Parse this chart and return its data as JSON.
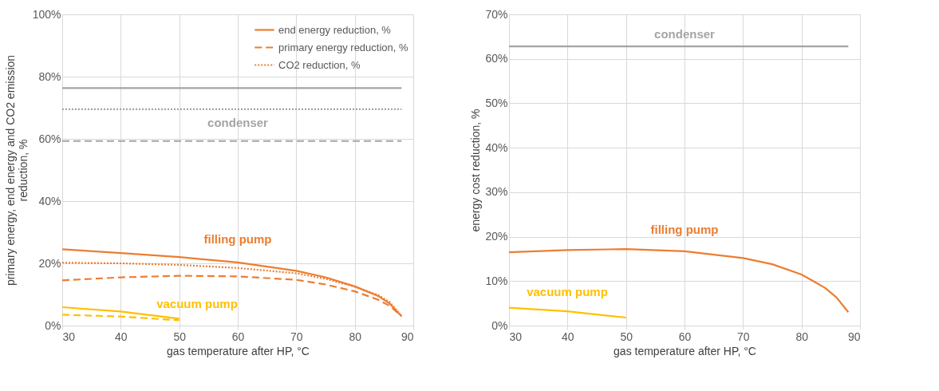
{
  "chart_data": [
    {
      "type": "line",
      "xlabel": "gas temperature after HP, °C",
      "ylabel": "primary energy, end energy and CO2 emission\nreduction, %",
      "xlim": [
        30,
        90
      ],
      "xticks": [
        30,
        40,
        50,
        60,
        70,
        80,
        90
      ],
      "ylim": [
        0,
        100
      ],
      "yticks": [
        {
          "value": 0,
          "label": "0%"
        },
        {
          "value": 20,
          "label": "20%"
        },
        {
          "value": 40,
          "label": "40%"
        },
        {
          "value": 60,
          "label": "60%"
        },
        {
          "value": 80,
          "label": "80%"
        },
        {
          "value": 100,
          "label": "100%"
        }
      ],
      "grid": true,
      "legend": "top right",
      "series": [
        {
          "name": "end energy reduction, %",
          "color": "#ed7d31",
          "line_style": "solid",
          "x": [
            30,
            40,
            50,
            60,
            70,
            75,
            80,
            84,
            86,
            88
          ],
          "values": [
            24.5,
            23.3,
            22.0,
            20.3,
            17.6,
            15.5,
            12.6,
            9.5,
            7.0,
            3.0
          ]
        },
        {
          "name": "primary energy reduction, %",
          "color": "#ed7d31",
          "line_style": "dashed",
          "x": [
            30,
            40,
            50,
            60,
            70,
            75,
            80,
            84,
            86,
            88
          ],
          "values": [
            14.5,
            15.5,
            16.0,
            15.8,
            14.7,
            13.2,
            11.0,
            8.3,
            6.3,
            3.0
          ]
        },
        {
          "name": "CO2 reduction, %",
          "color": "#ed7d31",
          "line_style": "dotted",
          "x": [
            30,
            40,
            50,
            60,
            70,
            75,
            80,
            84,
            86,
            88
          ],
          "values": [
            20.2,
            20.0,
            19.5,
            18.5,
            16.8,
            15.0,
            12.5,
            9.8,
            7.5,
            3.0
          ]
        },
        {
          "color": "#ffc000",
          "line_style": "solid",
          "x": [
            30,
            40,
            50
          ],
          "values": [
            5.9,
            4.5,
            2.2
          ]
        },
        {
          "color": "#ffc000",
          "line_style": "dashed",
          "x": [
            30,
            40,
            50
          ],
          "values": [
            3.5,
            2.9,
            1.7
          ]
        },
        {
          "color": "#a5a5a5",
          "line_style": "solid",
          "x": [
            30,
            88
          ],
          "values": [
            76.3,
            76.3
          ]
        },
        {
          "color": "#a5a5a5",
          "line_style": "dotted",
          "x": [
            30,
            88
          ],
          "values": [
            69.5,
            69.5
          ]
        },
        {
          "color": "#a5a5a5",
          "line_style": "dashed",
          "x": [
            30,
            88
          ],
          "values": [
            59.3,
            59.3
          ]
        }
      ],
      "annotations": [
        "condenser",
        "filling pump",
        "vacuum pump"
      ]
    },
    {
      "type": "line",
      "xlabel": "gas temperature after HP, °C",
      "ylabel": "energy cost reduction, %",
      "xlim": [
        30,
        90
      ],
      "xticks": [
        30,
        40,
        50,
        60,
        70,
        80,
        90
      ],
      "ylim": [
        0,
        70
      ],
      "yticks": [
        {
          "value": 0,
          "label": "0%"
        },
        {
          "value": 10,
          "label": "10%"
        },
        {
          "value": 20,
          "label": "20%"
        },
        {
          "value": 30,
          "label": "30%"
        },
        {
          "value": 40,
          "label": "40%"
        },
        {
          "value": 50,
          "label": "50%"
        },
        {
          "value": 60,
          "label": "60%"
        },
        {
          "value": 70,
          "label": "70%"
        }
      ],
      "grid": true,
      "series": [
        {
          "color": "#ed7d31",
          "line_style": "solid",
          "x": [
            30,
            40,
            50,
            60,
            70,
            75,
            80,
            84,
            86,
            88
          ],
          "values": [
            16.5,
            17.0,
            17.2,
            16.7,
            15.2,
            13.8,
            11.5,
            8.5,
            6.3,
            3.0
          ]
        },
        {
          "color": "#ffc000",
          "line_style": "solid",
          "x": [
            30,
            40,
            50
          ],
          "values": [
            4.0,
            3.2,
            1.8
          ]
        },
        {
          "color": "#a5a5a5",
          "line_style": "solid",
          "x": [
            30,
            88
          ],
          "values": [
            62.8,
            62.8
          ]
        }
      ],
      "annotations": [
        "condenser",
        "filling pump",
        "vacuum pump"
      ]
    }
  ]
}
